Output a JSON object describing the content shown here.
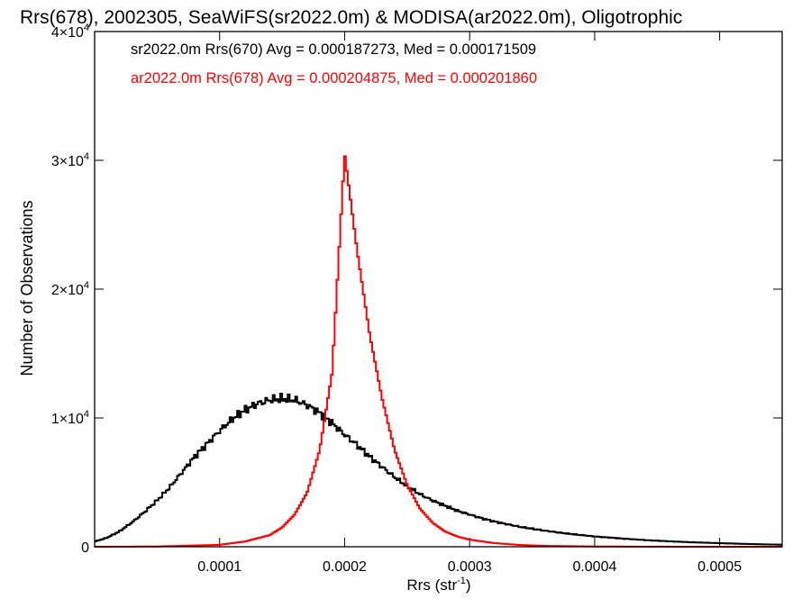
{
  "chart_data": {
    "type": "histogram",
    "title": "Rrs(678), 2002305, SeaWiFS(sr2022.0m) & MODISA(ar2022.0m), Oligotrophic",
    "xlabel": "Rrs (str",
    "xlabel_exponent": "-1",
    "xlabel_suffix": ")",
    "ylabel": "Number of Observations",
    "xlim": [
      0.0,
      0.00055
    ],
    "ylim": [
      0,
      40000
    ],
    "xticks": [
      {
        "value": 0.0001,
        "label": "0.0001"
      },
      {
        "value": 0.0002,
        "label": "0.0002"
      },
      {
        "value": 0.0003,
        "label": "0.0003"
      },
      {
        "value": 0.0004,
        "label": "0.0004"
      },
      {
        "value": 0.0005,
        "label": "0.0005"
      }
    ],
    "yticks": [
      {
        "value": 0,
        "mantissa": "0",
        "exponent": ""
      },
      {
        "value": 10000,
        "mantissa": "1×10",
        "exponent": "4"
      },
      {
        "value": 20000,
        "mantissa": "2×10",
        "exponent": "4"
      },
      {
        "value": 30000,
        "mantissa": "3×10",
        "exponent": "4"
      },
      {
        "value": 40000,
        "mantissa": "4×10",
        "exponent": "4"
      }
    ],
    "grid": false,
    "legend_position": "top-left",
    "series": [
      {
        "legend": "sr2022.0m Rrs(670) Avg = 0.000187273, Med = 0.000171509",
        "color": "#000000",
        "points": [
          [
            0.0,
            400
          ],
          [
            1e-05,
            700
          ],
          [
            2e-05,
            1200
          ],
          [
            3e-05,
            1900
          ],
          [
            4e-05,
            2700
          ],
          [
            5e-05,
            3600
          ],
          [
            6e-05,
            4600
          ],
          [
            7e-05,
            5800
          ],
          [
            8e-05,
            7000
          ],
          [
            9e-05,
            8000
          ],
          [
            0.0001,
            9000
          ],
          [
            0.00011,
            9900
          ],
          [
            0.00012,
            10600
          ],
          [
            0.00013,
            11100
          ],
          [
            0.00014,
            11400
          ],
          [
            0.00015,
            11500
          ],
          [
            0.00016,
            11400
          ],
          [
            0.00017,
            11000
          ],
          [
            0.00018,
            10400
          ],
          [
            0.00019,
            9600
          ],
          [
            0.0002,
            8700
          ],
          [
            0.00021,
            7900
          ],
          [
            0.00022,
            7000
          ],
          [
            0.00023,
            6200
          ],
          [
            0.00024,
            5400
          ],
          [
            0.00025,
            4700
          ],
          [
            0.00026,
            4100
          ],
          [
            0.00027,
            3600
          ],
          [
            0.00028,
            3200
          ],
          [
            0.00029,
            2800
          ],
          [
            0.0003,
            2500
          ],
          [
            0.00031,
            2200
          ],
          [
            0.00032,
            1950
          ],
          [
            0.00033,
            1750
          ],
          [
            0.00034,
            1550
          ],
          [
            0.00035,
            1400
          ],
          [
            0.00036,
            1250
          ],
          [
            0.00037,
            1120
          ],
          [
            0.00038,
            1000
          ],
          [
            0.00039,
            900
          ],
          [
            0.0004,
            800
          ],
          [
            0.00042,
            650
          ],
          [
            0.00044,
            520
          ],
          [
            0.00046,
            420
          ],
          [
            0.00048,
            340
          ],
          [
            0.0005,
            280
          ],
          [
            0.00052,
            220
          ],
          [
            0.00055,
            160
          ]
        ]
      },
      {
        "legend": "ar2022.0m Rrs(678) Avg = 0.000204875, Med = 0.000201860",
        "color": "#ff0000",
        "points": [
          [
            0.0,
            0
          ],
          [
            5e-05,
            20
          ],
          [
            0.0001,
            150
          ],
          [
            0.00012,
            400
          ],
          [
            0.00014,
            900
          ],
          [
            0.00015,
            1500
          ],
          [
            0.00016,
            2500
          ],
          [
            0.00017,
            4200
          ],
          [
            0.00018,
            7500
          ],
          [
            0.00019,
            13500
          ],
          [
            0.0002,
            30500
          ],
          [
            0.00021,
            23000
          ],
          [
            0.00022,
            16500
          ],
          [
            0.00023,
            11500
          ],
          [
            0.00024,
            7500
          ],
          [
            0.00025,
            4800
          ],
          [
            0.00026,
            3000
          ],
          [
            0.00027,
            1900
          ],
          [
            0.00028,
            1200
          ],
          [
            0.00029,
            800
          ],
          [
            0.0003,
            550
          ],
          [
            0.00032,
            280
          ],
          [
            0.00034,
            140
          ],
          [
            0.00036,
            70
          ],
          [
            0.0004,
            20
          ],
          [
            0.00045,
            5
          ],
          [
            0.00055,
            0
          ]
        ]
      }
    ]
  }
}
